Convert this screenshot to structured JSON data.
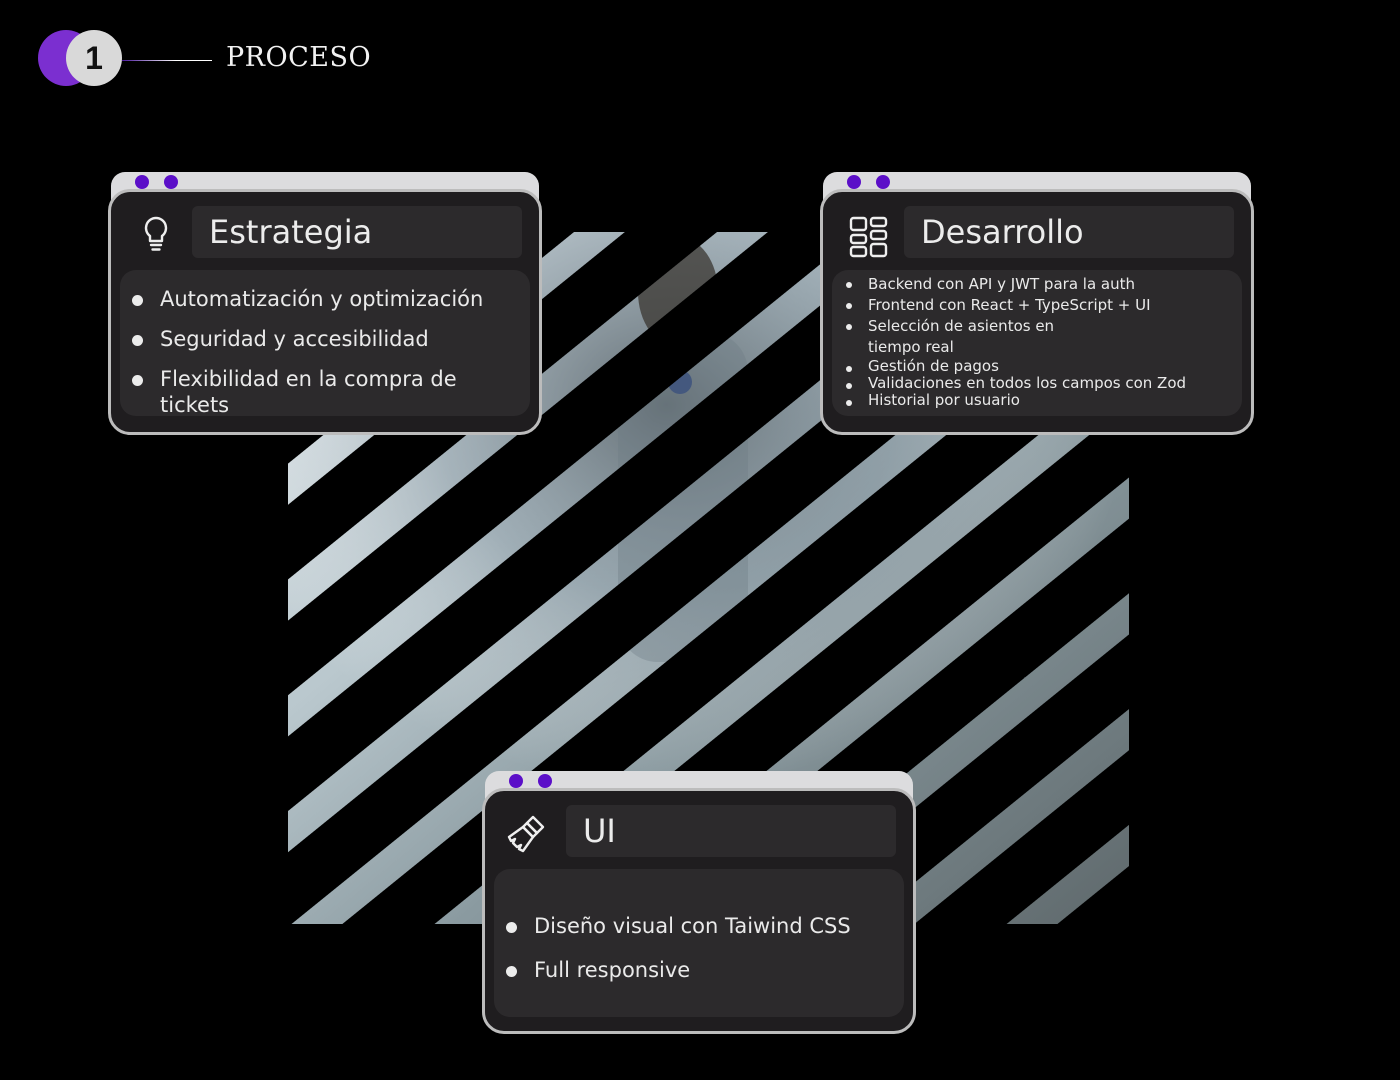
{
  "header": {
    "step_number": "1",
    "title": "PROCESO"
  },
  "colors": {
    "accent": "#7b2fd0",
    "dot": "#5b0fc8",
    "card_bg": "#1f1d1f",
    "panel_bg": "#2c2a2c",
    "tab_bg": "#dcdcde"
  },
  "cards": {
    "strategy": {
      "icon": "lightbulb-icon",
      "title": "Estrategia",
      "items": [
        "Automatización y optimización",
        "Seguridad y accesibilidad",
        "Flexibilidad en la compra de tickets"
      ]
    },
    "development": {
      "icon": "grid-layout-icon",
      "title": "Desarrollo",
      "items": [
        "Backend con API y JWT para la auth",
        "Frontend con React + TypeScript + UI",
        "Selección de asientos en tiempo real",
        "Gestión de pagos",
        "Validaciones en todos los campos con Zod",
        "Historial por usuario"
      ]
    },
    "ui": {
      "icon": "paintbrush-icon",
      "title": "UI",
      "items": [
        "Diseño visual con Taiwind CSS",
        "Full responsive"
      ]
    }
  },
  "background_image": {
    "description_icon": "astronaut-photo-striped"
  }
}
